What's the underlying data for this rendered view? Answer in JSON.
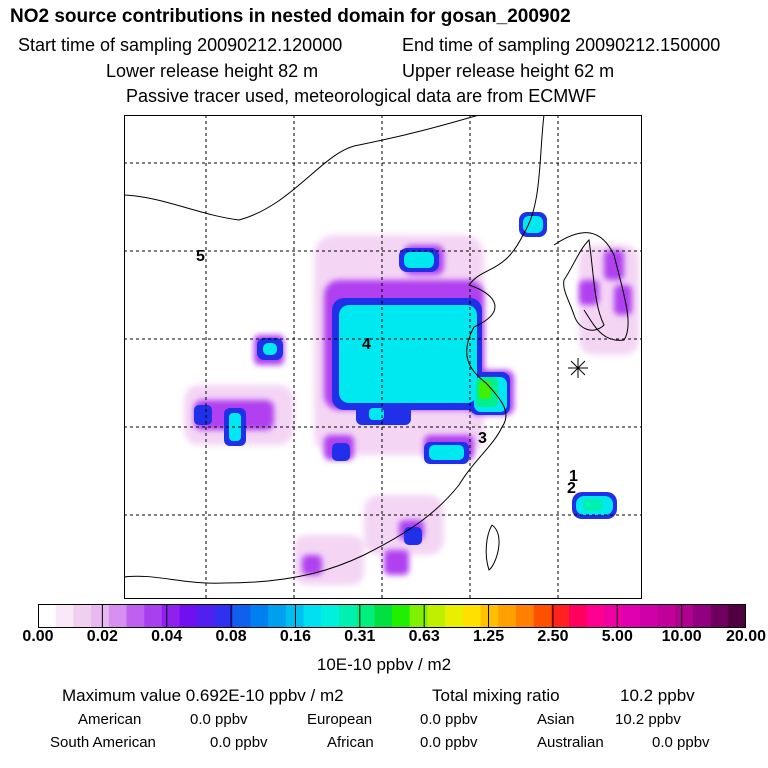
{
  "header": {
    "title": "NO2 source contributions in nested domain for gosan_200902",
    "start_label": "Start time of sampling 20090212.120000",
    "end_label": "End time of sampling 20090212.150000",
    "lower_label": "Lower release height   82 m",
    "upper_label": "Upper release height   62 m",
    "note": "Passive tracer used, meteorological data are from ECMWF"
  },
  "chart_data": {
    "type": "heatmap",
    "title": "NO2 source contributions in nested domain for gosan_200902",
    "map_labels": [
      "1",
      "2",
      "3",
      "4",
      "5"
    ],
    "receptor": "gosan",
    "colorbar": {
      "unit": "10E-10 ppbv / m2",
      "ticks": [
        "0.00",
        "0.02",
        "0.04",
        "0.08",
        "0.16",
        "0.31",
        "0.63",
        "1.25",
        "2.50",
        "5.00",
        "10.00",
        "20.00"
      ],
      "colors": [
        "#ffffff",
        "#f8e8f8",
        "#f0d0f0",
        "#e8b8f0",
        "#d890f0",
        "#c060f0",
        "#a840f0",
        "#9020f0",
        "#7010f0",
        "#5020f0",
        "#3030f0",
        "#1060f0",
        "#0080f0",
        "#00a0f0",
        "#00c0f0",
        "#00e0f0",
        "#00f0e0",
        "#00f0b0",
        "#00f080",
        "#00e040",
        "#20f000",
        "#80f000",
        "#c0f000",
        "#e8f000",
        "#ffe000",
        "#ffc000",
        "#ffa000",
        "#ff8000",
        "#ff5000",
        "#ff2020",
        "#ff0060",
        "#ff0090",
        "#f000a0",
        "#e000b0",
        "#d000a8",
        "#c00098",
        "#b00090",
        "#900080",
        "#700060",
        "#500040"
      ]
    }
  },
  "footer": {
    "max_label": "Maximum value  0.692E-10 ppbv / m2",
    "total_label": "Total mixing ratio",
    "total_value": "10.2 ppbv",
    "regions": [
      {
        "name": "American",
        "value": "0.0 ppbv"
      },
      {
        "name": "European",
        "value": "0.0 ppbv"
      },
      {
        "name": "Asian",
        "value": "10.2 ppbv"
      },
      {
        "name": "South American",
        "value": "0.0 ppbv"
      },
      {
        "name": "African",
        "value": "0.0 ppbv"
      },
      {
        "name": "Australian",
        "value": "0.0 ppbv"
      }
    ]
  }
}
